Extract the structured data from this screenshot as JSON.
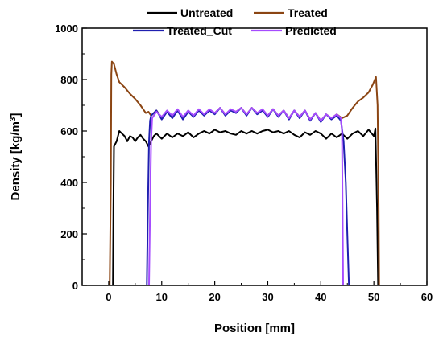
{
  "chart_data": {
    "type": "line",
    "title": "",
    "xlabel": "Position [mm]",
    "ylabel": "Density [kg/m",
    "ylabel_superscript": "3",
    "ylabel_suffix": "]",
    "xlim": [
      -5,
      60
    ],
    "ylim": [
      0,
      1000
    ],
    "xticks": [
      "0",
      "10",
      "20",
      "30",
      "40",
      "50",
      "60"
    ],
    "yticks": [
      "0",
      "200",
      "400",
      "600",
      "800",
      "1000"
    ],
    "grid": false,
    "legend_position": "top",
    "series": [
      {
        "name": "Untreated",
        "color": "#000000",
        "points": [
          [
            0.8,
            0
          ],
          [
            0.9,
            300
          ],
          [
            1.0,
            540
          ],
          [
            1.5,
            560
          ],
          [
            2,
            600
          ],
          [
            2.5,
            590
          ],
          [
            3,
            580
          ],
          [
            3.5,
            560
          ],
          [
            4,
            580
          ],
          [
            4.5,
            575
          ],
          [
            5,
            560
          ],
          [
            5.5,
            575
          ],
          [
            6,
            585
          ],
          [
            6.5,
            570
          ],
          [
            7,
            560
          ],
          [
            7.5,
            540
          ],
          [
            8,
            560
          ],
          [
            8.5,
            580
          ],
          [
            9,
            590
          ],
          [
            10,
            570
          ],
          [
            11,
            590
          ],
          [
            12,
            575
          ],
          [
            13,
            590
          ],
          [
            14,
            580
          ],
          [
            15,
            595
          ],
          [
            16,
            575
          ],
          [
            17,
            590
          ],
          [
            18,
            600
          ],
          [
            19,
            590
          ],
          [
            20,
            605
          ],
          [
            21,
            595
          ],
          [
            22,
            600
          ],
          [
            23,
            590
          ],
          [
            24,
            585
          ],
          [
            25,
            600
          ],
          [
            26,
            590
          ],
          [
            27,
            600
          ],
          [
            28,
            590
          ],
          [
            29,
            600
          ],
          [
            30,
            605
          ],
          [
            31,
            595
          ],
          [
            32,
            600
          ],
          [
            33,
            590
          ],
          [
            34,
            600
          ],
          [
            35,
            585
          ],
          [
            36,
            575
          ],
          [
            37,
            595
          ],
          [
            38,
            585
          ],
          [
            39,
            600
          ],
          [
            40,
            590
          ],
          [
            41,
            570
          ],
          [
            42,
            590
          ],
          [
            43,
            575
          ],
          [
            44,
            590
          ],
          [
            45,
            570
          ],
          [
            46,
            590
          ],
          [
            47,
            600
          ],
          [
            48,
            580
          ],
          [
            49,
            605
          ],
          [
            50,
            580
          ],
          [
            50.3,
            610
          ],
          [
            50.6,
            300
          ],
          [
            50.8,
            0
          ]
        ]
      },
      {
        "name": "Treated",
        "color": "#8B4513",
        "points": [
          [
            0.2,
            0
          ],
          [
            0.4,
            400
          ],
          [
            0.5,
            820
          ],
          [
            0.6,
            870
          ],
          [
            1,
            860
          ],
          [
            1.5,
            820
          ],
          [
            2,
            790
          ],
          [
            3,
            770
          ],
          [
            4,
            745
          ],
          [
            5,
            725
          ],
          [
            6,
            700
          ],
          [
            7,
            670
          ],
          [
            7.5,
            675
          ],
          [
            8,
            660
          ],
          [
            9,
            680
          ],
          [
            10,
            650
          ],
          [
            11,
            675
          ],
          [
            12,
            655
          ],
          [
            13,
            680
          ],
          [
            14,
            650
          ],
          [
            15,
            675
          ],
          [
            16,
            660
          ],
          [
            17,
            680
          ],
          [
            18,
            665
          ],
          [
            19,
            680
          ],
          [
            20,
            670
          ],
          [
            21,
            690
          ],
          [
            22,
            665
          ],
          [
            23,
            680
          ],
          [
            24,
            675
          ],
          [
            25,
            690
          ],
          [
            26,
            665
          ],
          [
            27,
            690
          ],
          [
            28,
            670
          ],
          [
            29,
            680
          ],
          [
            30,
            660
          ],
          [
            31,
            685
          ],
          [
            32,
            660
          ],
          [
            33,
            680
          ],
          [
            34,
            650
          ],
          [
            35,
            680
          ],
          [
            36,
            655
          ],
          [
            37,
            680
          ],
          [
            38,
            645
          ],
          [
            39,
            670
          ],
          [
            40,
            640
          ],
          [
            41,
            665
          ],
          [
            42,
            650
          ],
          [
            43,
            665
          ],
          [
            44,
            650
          ],
          [
            45,
            660
          ],
          [
            46,
            690
          ],
          [
            47,
            715
          ],
          [
            48,
            730
          ],
          [
            49,
            750
          ],
          [
            49.8,
            780
          ],
          [
            50.4,
            810
          ],
          [
            50.7,
            700
          ],
          [
            50.9,
            300
          ],
          [
            51.0,
            0
          ]
        ]
      },
      {
        "name": "Treated_Cut",
        "color": "#1f1fb0",
        "points": [
          [
            7.2,
            0
          ],
          [
            7.4,
            300
          ],
          [
            7.6,
            560
          ],
          [
            7.8,
            640
          ],
          [
            8,
            660
          ],
          [
            9,
            680
          ],
          [
            10,
            645
          ],
          [
            11,
            675
          ],
          [
            12,
            650
          ],
          [
            13,
            680
          ],
          [
            14,
            645
          ],
          [
            15,
            675
          ],
          [
            16,
            655
          ],
          [
            17,
            680
          ],
          [
            18,
            660
          ],
          [
            19,
            680
          ],
          [
            20,
            665
          ],
          [
            21,
            690
          ],
          [
            22,
            660
          ],
          [
            23,
            680
          ],
          [
            24,
            670
          ],
          [
            25,
            690
          ],
          [
            26,
            660
          ],
          [
            27,
            690
          ],
          [
            28,
            665
          ],
          [
            29,
            680
          ],
          [
            30,
            655
          ],
          [
            31,
            685
          ],
          [
            32,
            655
          ],
          [
            33,
            680
          ],
          [
            34,
            645
          ],
          [
            35,
            680
          ],
          [
            36,
            650
          ],
          [
            37,
            680
          ],
          [
            38,
            640
          ],
          [
            39,
            670
          ],
          [
            40,
            635
          ],
          [
            41,
            665
          ],
          [
            42,
            645
          ],
          [
            43,
            660
          ],
          [
            43.8,
            640
          ],
          [
            44.3,
            560
          ],
          [
            44.7,
            400
          ],
          [
            45.0,
            200
          ],
          [
            45.3,
            0
          ]
        ]
      },
      {
        "name": "Predicted",
        "color": "#a64cff",
        "points": [
          [
            7.6,
            0
          ],
          [
            7.8,
            300
          ],
          [
            8.0,
            560
          ],
          [
            8.2,
            650
          ],
          [
            9,
            675
          ],
          [
            10,
            655
          ],
          [
            11,
            680
          ],
          [
            12,
            660
          ],
          [
            13,
            685
          ],
          [
            14,
            655
          ],
          [
            15,
            680
          ],
          [
            16,
            660
          ],
          [
            17,
            685
          ],
          [
            18,
            665
          ],
          [
            19,
            685
          ],
          [
            20,
            670
          ],
          [
            21,
            690
          ],
          [
            22,
            665
          ],
          [
            23,
            685
          ],
          [
            24,
            675
          ],
          [
            25,
            690
          ],
          [
            26,
            665
          ],
          [
            27,
            690
          ],
          [
            28,
            670
          ],
          [
            29,
            685
          ],
          [
            30,
            660
          ],
          [
            31,
            685
          ],
          [
            32,
            660
          ],
          [
            33,
            680
          ],
          [
            34,
            650
          ],
          [
            35,
            680
          ],
          [
            36,
            655
          ],
          [
            37,
            680
          ],
          [
            38,
            645
          ],
          [
            39,
            670
          ],
          [
            40,
            640
          ],
          [
            41,
            665
          ],
          [
            42,
            650
          ],
          [
            43,
            665
          ],
          [
            43.8,
            650
          ],
          [
            44.0,
            600
          ],
          [
            44.1,
            300
          ],
          [
            44.2,
            0
          ]
        ]
      }
    ]
  }
}
